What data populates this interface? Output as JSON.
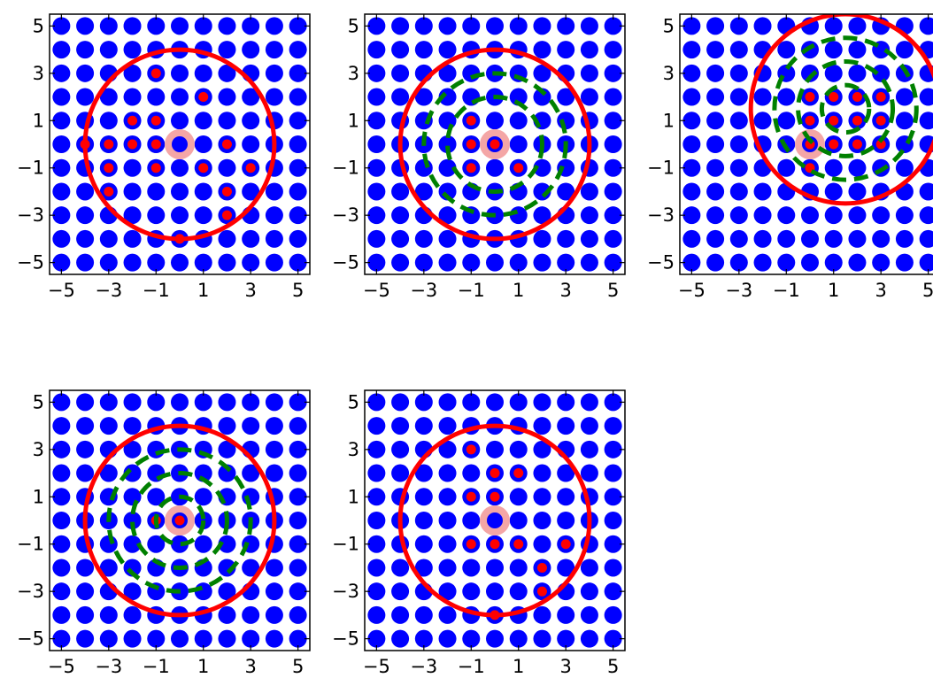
{
  "colors": {
    "grid_point": "#0000ff",
    "selected_point": "#ff0000",
    "query_point": "#f4a6a6",
    "outer_circle": "#ff0000",
    "inner_circles": "#008000",
    "axes": "#000000"
  },
  "chart_data": [
    {
      "type": "scatter",
      "title": "",
      "xlabel": "",
      "ylabel": "",
      "xlim": [
        -5.5,
        5.5
      ],
      "ylim": [
        -5.5,
        5.5
      ],
      "xticks": [
        "−5",
        "−3",
        "−1",
        "1",
        "3",
        "5"
      ],
      "yticks": [
        "5",
        "3",
        "1",
        "−1",
        "−3",
        "−5"
      ],
      "grid_points": {
        "min": -5,
        "max": 5,
        "step": 1
      },
      "query_point": [
        0,
        0
      ],
      "outer_circle": {
        "center": [
          0,
          0
        ],
        "radius": 4
      },
      "inner_circles": [],
      "selected_points": [
        [
          -1,
          3
        ],
        [
          1,
          2
        ],
        [
          -2,
          1
        ],
        [
          -1,
          1
        ],
        [
          -4,
          0
        ],
        [
          -3,
          0
        ],
        [
          -2,
          0
        ],
        [
          -1,
          0
        ],
        [
          2,
          0
        ],
        [
          -3,
          -1
        ],
        [
          -1,
          -1
        ],
        [
          1,
          -1
        ],
        [
          3,
          -1
        ],
        [
          -3,
          -2
        ],
        [
          2,
          -2
        ],
        [
          2,
          -3
        ],
        [
          0,
          -4
        ]
      ]
    },
    {
      "type": "scatter",
      "title": "",
      "xlabel": "",
      "ylabel": "",
      "xlim": [
        -5.5,
        5.5
      ],
      "ylim": [
        -5.5,
        5.5
      ],
      "xticks": [
        "−5",
        "−3",
        "−1",
        "1",
        "3",
        "5"
      ],
      "yticks": [
        "5",
        "3",
        "1",
        "−1",
        "−3",
        "−5"
      ],
      "grid_points": {
        "min": -5,
        "max": 5,
        "step": 1
      },
      "query_point": [
        0,
        0
      ],
      "outer_circle": {
        "center": [
          0,
          0
        ],
        "radius": 4
      },
      "inner_circles": [
        {
          "center": [
            0,
            0
          ],
          "radius": 3
        },
        {
          "center": [
            0,
            0
          ],
          "radius": 2
        }
      ],
      "selected_points": [
        [
          -1,
          1
        ],
        [
          -1,
          0
        ],
        [
          0,
          0
        ],
        [
          -1,
          -1
        ],
        [
          1,
          -1
        ]
      ]
    },
    {
      "type": "scatter",
      "title": "",
      "xlabel": "",
      "ylabel": "",
      "xlim": [
        -5.5,
        5.5
      ],
      "ylim": [
        -5.5,
        5.5
      ],
      "xticks": [
        "−5",
        "−3",
        "−1",
        "1",
        "3",
        "5"
      ],
      "yticks": [
        "5",
        "3",
        "1",
        "−1",
        "−3",
        "−5"
      ],
      "grid_points": {
        "min": -5,
        "max": 5,
        "step": 1
      },
      "query_point": [
        0,
        0
      ],
      "outer_circle": {
        "center": [
          1.5,
          1.5
        ],
        "radius": 4
      },
      "inner_circles": [
        {
          "center": [
            1.5,
            1.5
          ],
          "radius": 3
        },
        {
          "center": [
            1.5,
            1.5
          ],
          "radius": 2
        },
        {
          "center": [
            1.5,
            1.5
          ],
          "radius": 1
        }
      ],
      "selected_points": [
        [
          0,
          2
        ],
        [
          1,
          2
        ],
        [
          2,
          2
        ],
        [
          3,
          2
        ],
        [
          0,
          1
        ],
        [
          1,
          1
        ],
        [
          2,
          1
        ],
        [
          3,
          1
        ],
        [
          0,
          0
        ],
        [
          1,
          0
        ],
        [
          2,
          0
        ],
        [
          3,
          0
        ],
        [
          0,
          -1
        ]
      ]
    },
    {
      "type": "scatter",
      "title": "",
      "xlabel": "",
      "ylabel": "",
      "xlim": [
        -5.5,
        5.5
      ],
      "ylim": [
        -5.5,
        5.5
      ],
      "xticks": [
        "−5",
        "−3",
        "−1",
        "1",
        "3",
        "5"
      ],
      "yticks": [
        "5",
        "3",
        "1",
        "−1",
        "−3",
        "−5"
      ],
      "grid_points": {
        "min": -5,
        "max": 5,
        "step": 1
      },
      "query_point": [
        0,
        0
      ],
      "outer_circle": {
        "center": [
          0,
          0
        ],
        "radius": 4
      },
      "inner_circles": [
        {
          "center": [
            0,
            0
          ],
          "radius": 3
        },
        {
          "center": [
            0,
            0
          ],
          "radius": 2
        },
        {
          "center": [
            0,
            0
          ],
          "radius": 1
        }
      ],
      "selected_points": [
        [
          -1,
          0
        ],
        [
          0,
          0
        ]
      ]
    },
    {
      "type": "scatter",
      "title": "",
      "xlabel": "",
      "ylabel": "",
      "xlim": [
        -5.5,
        5.5
      ],
      "ylim": [
        -5.5,
        5.5
      ],
      "xticks": [
        "−5",
        "−3",
        "−1",
        "1",
        "3",
        "5"
      ],
      "yticks": [
        "5",
        "3",
        "1",
        "−1",
        "−3",
        "−5"
      ],
      "grid_points": {
        "min": -5,
        "max": 5,
        "step": 1
      },
      "query_point": [
        0,
        0
      ],
      "outer_circle": {
        "center": [
          0,
          0
        ],
        "radius": 4
      },
      "inner_circles": [],
      "selected_points": [
        [
          -1,
          3
        ],
        [
          0,
          2
        ],
        [
          1,
          2
        ],
        [
          -1,
          1
        ],
        [
          0,
          1
        ],
        [
          -1,
          -1
        ],
        [
          0,
          -1
        ],
        [
          1,
          -1
        ],
        [
          3,
          -1
        ],
        [
          2,
          -2
        ],
        [
          2,
          -3
        ],
        [
          0,
          -4
        ]
      ]
    }
  ]
}
